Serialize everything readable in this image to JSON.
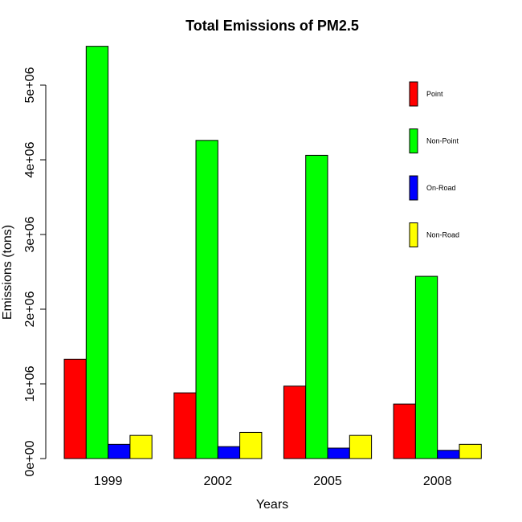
{
  "chart_data": {
    "type": "bar",
    "title": "Total Emissions of PM2.5",
    "xlabel": "Years",
    "ylabel": "Emissions (tons)",
    "categories": [
      "1999",
      "2002",
      "2005",
      "2008"
    ],
    "series": [
      {
        "name": "Point",
        "color": "#ff0000",
        "values": [
          1330000,
          880000,
          970000,
          730000
        ]
      },
      {
        "name": "Non-Point",
        "color": "#00ff00",
        "values": [
          5520000,
          4260000,
          4060000,
          2440000
        ]
      },
      {
        "name": "On-Road",
        "color": "#0000ff",
        "values": [
          190000,
          160000,
          140000,
          110000
        ]
      },
      {
        "name": "Non-Road",
        "color": "#ffff00",
        "values": [
          310000,
          350000,
          310000,
          190000
        ]
      }
    ],
    "ylim": [
      0,
      5600000
    ],
    "yticks": [
      0,
      1000000,
      2000000,
      3000000,
      4000000,
      5000000
    ],
    "ytick_labels": [
      "0e+00",
      "1e+06",
      "2e+06",
      "3e+06",
      "4e+06",
      "5e+06"
    ],
    "grid": false,
    "legend_position": "top-right"
  }
}
